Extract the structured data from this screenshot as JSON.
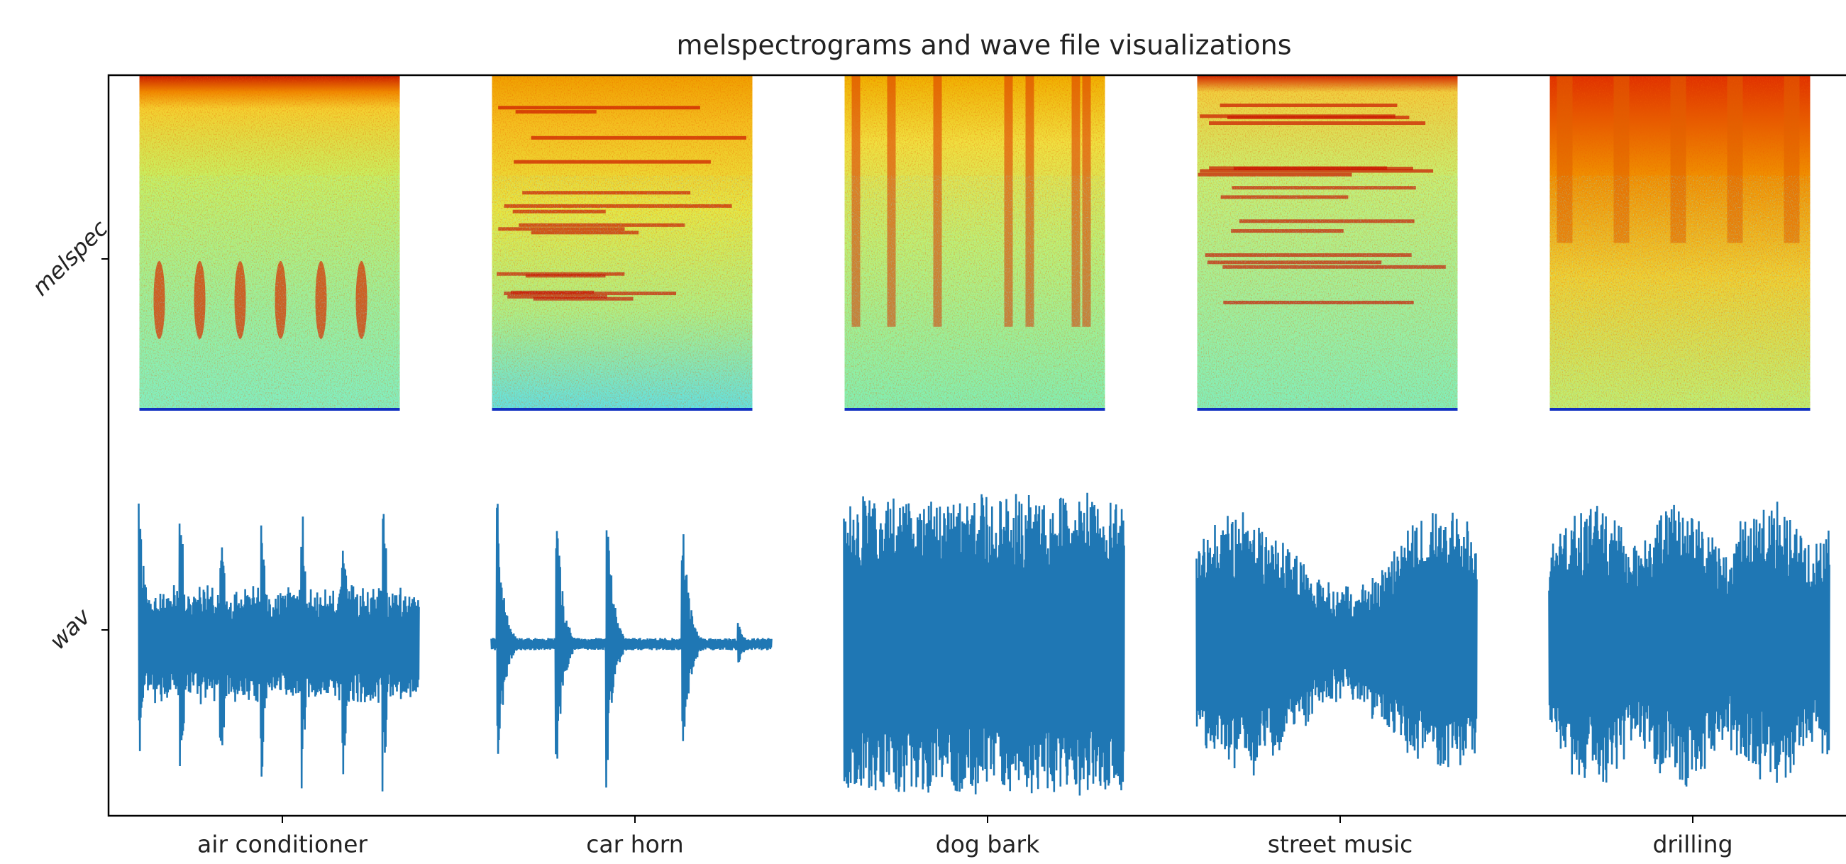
{
  "chart_data": {
    "type": "image-grid",
    "title": "melspectrograms and wave file visualizations",
    "categories": [
      "air conditioner",
      "car horn",
      "dog bark",
      "street music",
      "drilling"
    ],
    "rows": [
      "melspec",
      "wav"
    ],
    "wave_color": "#1f77b4"
  }
}
